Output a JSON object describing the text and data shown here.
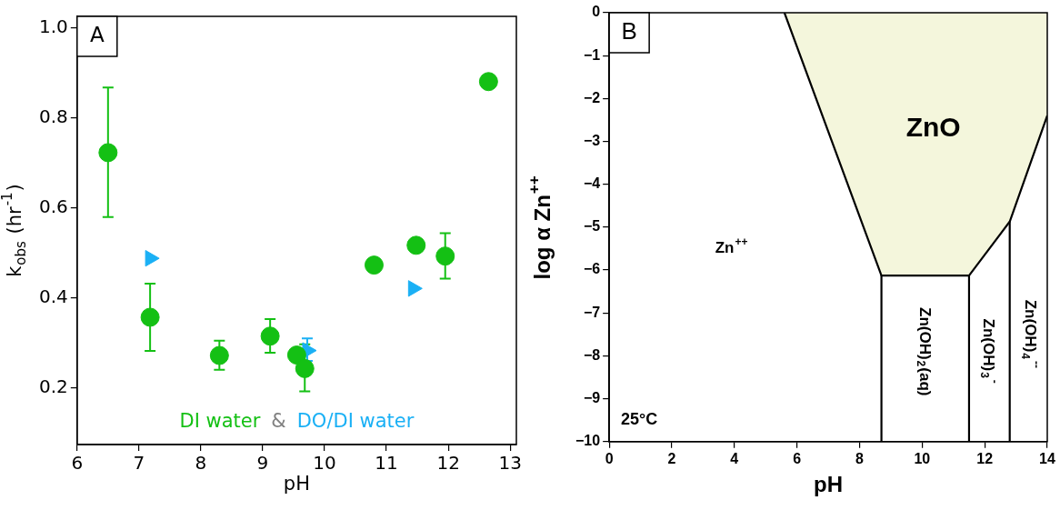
{
  "chart_data": [
    {
      "type": "scatter",
      "title": "A",
      "xlabel": "pH",
      "ylabel": "k$_{obs}$ (hr$^{-1}$)",
      "xlim": [
        6,
        13.1
      ],
      "xticks": [
        6,
        7,
        8,
        9,
        10,
        11,
        12,
        13
      ],
      "ylim": [
        0.074,
        1.026
      ],
      "yticks": [
        0.2,
        0.4,
        0.6,
        0.8,
        {
          "value": 1,
          "label": "1.0"
        }
      ],
      "legend": "bottom",
      "annotations": [
        "&"
      ],
      "series": [
        {
          "name": "DI water",
          "color": "#14c014",
          "marker": "circle",
          "x": [
            6.5,
            7.18,
            8.3,
            9.12,
            9.55,
            9.68,
            10.8,
            11.48,
            11.95,
            12.65
          ],
          "values": [
            0.723,
            0.357,
            0.272,
            0.315,
            0.273,
            0.243,
            0.473,
            0.517,
            0.493,
            0.881
          ],
          "errors": [
            [
              0.58,
              0.868
            ],
            [
              0.282,
              0.432
            ],
            [
              0.24,
              0.305
            ],
            [
              0.278,
              0.353
            ],
            null,
            [
              0.192,
              0.297
            ],
            null,
            null,
            [
              0.443,
              0.544
            ],
            null
          ]
        },
        {
          "name": "DO/DI water",
          "color": "#1ab0f5",
          "marker": "triangle",
          "x": [
            7.18,
            9.72,
            11.43
          ],
          "values": [
            0.488,
            0.283,
            0.421
          ],
          "errors": [
            null,
            [
              0.26,
              0.31
            ],
            null
          ]
        }
      ]
    },
    {
      "type": "line",
      "title": "B",
      "xlabel": "pH",
      "ylabel": "log α Zn$^{++}$",
      "xlim": [
        0,
        14
      ],
      "xticks": [
        0,
        2,
        4,
        6,
        8,
        10,
        12,
        14
      ],
      "ylim": [
        -10,
        0
      ],
      "yticks": [
        {
          "value": -10,
          "label": "−10"
        },
        {
          "value": -9,
          "label": "−9"
        },
        {
          "value": -8,
          "label": "−8"
        },
        {
          "value": -7,
          "label": "−7"
        },
        {
          "value": -6,
          "label": "−6"
        },
        {
          "value": -5,
          "label": "−5"
        },
        {
          "value": -4,
          "label": "−4"
        },
        {
          "value": -3,
          "label": "−3"
        },
        {
          "value": -2,
          "label": "−2"
        },
        {
          "value": -1,
          "label": "−1"
        },
        0
      ],
      "annotations": [
        "ZnO",
        "Zn$^{++}$",
        "Zn(OH)$_{2}$(aq)",
        "Zn(OH)$_{3}$$^{-}$",
        "Zn(OH)$_{4}$$^{--}$",
        "25°C"
      ],
      "series": [
        {
          "type": "area",
          "color": "#f4f6dc",
          "x": [
            5.6,
            8.7,
            11.5,
            12.8,
            14
          ],
          "values": [
            0,
            -6.13,
            -6.13,
            -4.87,
            -2.4
          ]
        },
        {
          "color": "#000000",
          "x": [
            8.7,
            8.7
          ],
          "values": [
            -6.13,
            -10
          ]
        },
        {
          "color": "#000000",
          "x": [
            11.5,
            11.5
          ],
          "values": [
            -6.13,
            -10
          ]
        },
        {
          "color": "#000000",
          "x": [
            12.8,
            12.8
          ],
          "values": [
            -4.87,
            -10
          ]
        }
      ]
    }
  ]
}
